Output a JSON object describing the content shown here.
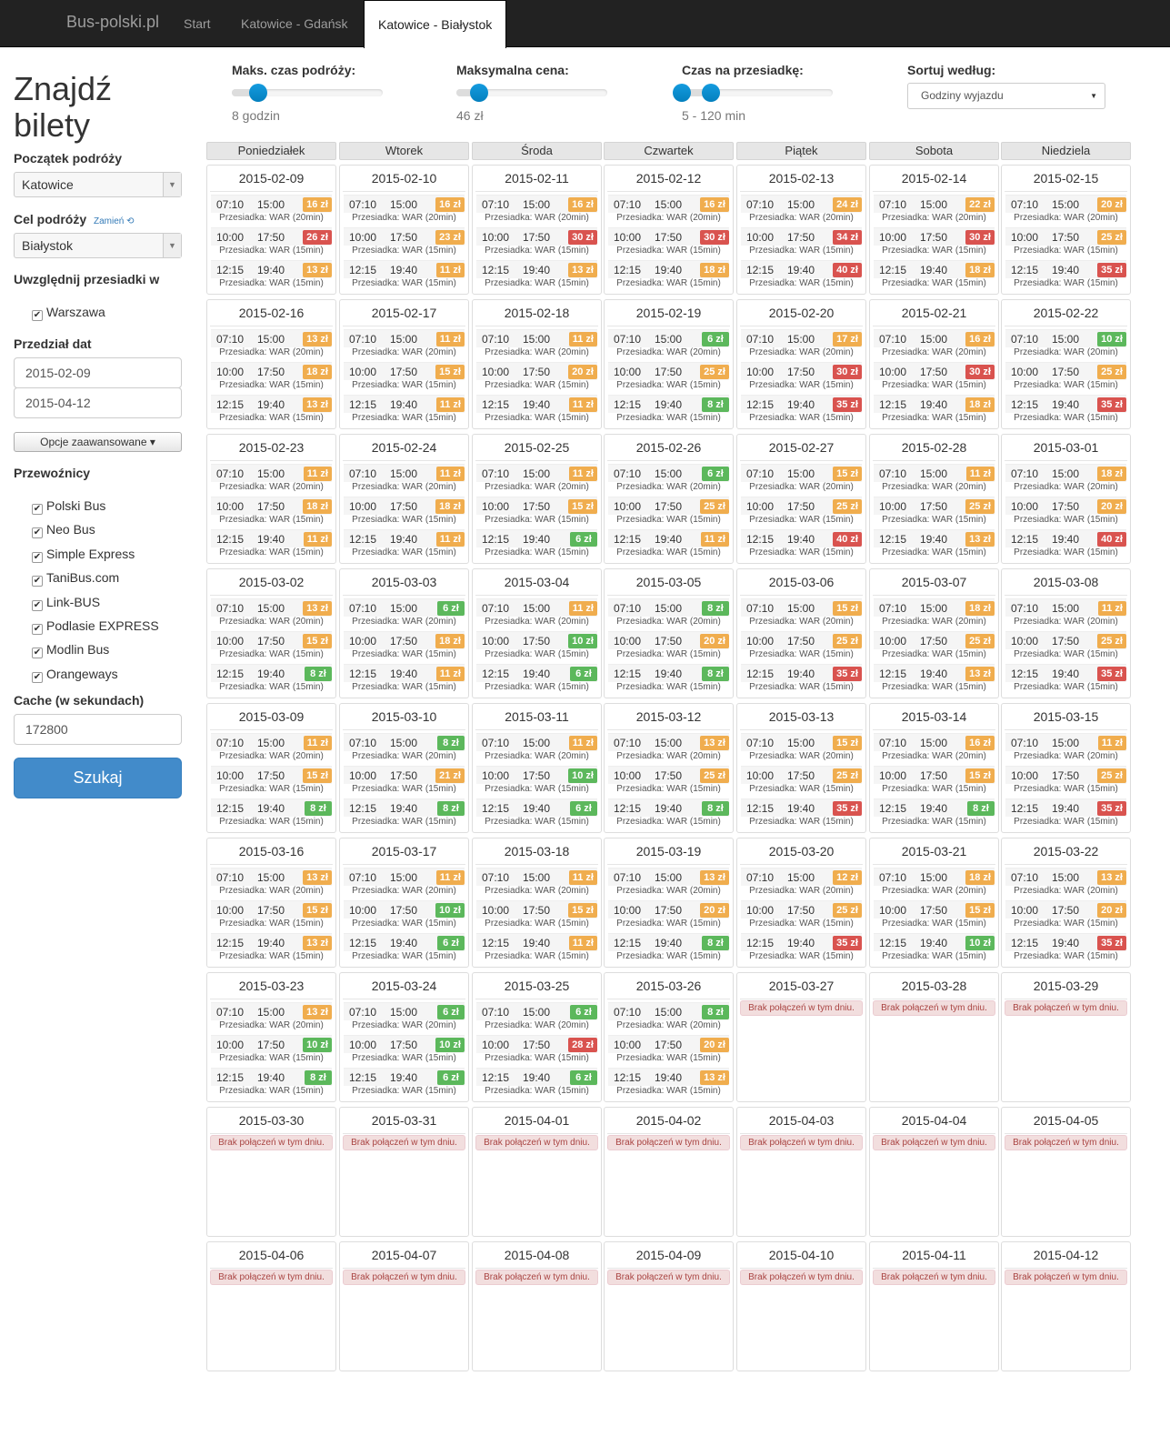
{
  "nav": {
    "brand": "Bus-polski.pl",
    "items": [
      "Start",
      "Katowice - Gdańsk",
      "Katowice - Białystok"
    ]
  },
  "sidebar": {
    "title_line1": "Znajdź",
    "title_line2": "bilety",
    "origin_label": "Początek podróży",
    "origin_value": "Katowice",
    "destination_label": "Cel podróży",
    "swap_label": "Zamień",
    "destination_value": "Białystok",
    "transfers_label": "Uwzględnij przesiadki w",
    "transfers": [
      "Warszawa"
    ],
    "date_range_label": "Przedział dat",
    "date_from": "2015-02-09",
    "date_to": "2015-04-12",
    "advanced_label": "Opcje zaawansowane",
    "carriers_label": "Przewoźnicy",
    "carriers": [
      "Polski Bus",
      "Neo Bus",
      "Simple Express",
      "TaniBus.com",
      "Link-BUS",
      "Podlasie EXPRESS",
      "Modlin Bus",
      "Orangeways"
    ],
    "cache_label": "Cache (w sekundach)",
    "cache_value": "172800",
    "search_label": "Szukaj"
  },
  "filters": {
    "max_time_label": "Maks. czas podróży:",
    "max_time_value": "8 godzin",
    "max_price_label": "Maksymalna cena:",
    "max_price_value": "46 zł",
    "transfer_time_label": "Czas na przesiadkę:",
    "transfer_time_value": "5 - 120 min",
    "sort_label": "Sortuj według:",
    "sort_value": "Godziny wyjazdu"
  },
  "calendar": {
    "weekdays": [
      "Poniedziałek",
      "Wtorek",
      "Środa",
      "Czwartek",
      "Piątek",
      "Sobota",
      "Niedziela"
    ],
    "no_connections": "Brak połączeń w tym dniu.",
    "times": [
      [
        "07:10",
        "15:00"
      ],
      [
        "10:00",
        "17:50"
      ],
      [
        "12:15",
        "19:40"
      ]
    ],
    "via": [
      "Przesiadka: WAR (20min)",
      "Przesiadka: WAR (15min)",
      "Przesiadka: WAR (15min)"
    ],
    "colors": {
      "green": "#5cb85c",
      "orange": "#f0ad4e",
      "red": "#d9534f"
    },
    "days": [
      {
        "date": "2015-02-09",
        "prices": [
          "16 zł",
          "26 zł",
          "13 zł"
        ]
      },
      {
        "date": "2015-02-10",
        "prices": [
          "16 zł",
          "23 zł",
          "11 zł"
        ]
      },
      {
        "date": "2015-02-11",
        "prices": [
          "16 zł",
          "30 zł",
          "13 zł"
        ]
      },
      {
        "date": "2015-02-12",
        "prices": [
          "16 zł",
          "30 zł",
          "18 zł"
        ]
      },
      {
        "date": "2015-02-13",
        "prices": [
          "24 zł",
          "34 zł",
          "40 zł"
        ]
      },
      {
        "date": "2015-02-14",
        "prices": [
          "22 zł",
          "30 zł",
          "18 zł"
        ]
      },
      {
        "date": "2015-02-15",
        "prices": [
          "20 zł",
          "25 zł",
          "35 zł"
        ]
      },
      {
        "date": "2015-02-16",
        "prices": [
          "13 zł",
          "18 zł",
          "13 zł"
        ]
      },
      {
        "date": "2015-02-17",
        "prices": [
          "11 zł",
          "15 zł",
          "11 zł"
        ]
      },
      {
        "date": "2015-02-18",
        "prices": [
          "11 zł",
          "20 zł",
          "11 zł"
        ]
      },
      {
        "date": "2015-02-19",
        "prices": [
          "6 zł",
          "25 zł",
          "8 zł"
        ]
      },
      {
        "date": "2015-02-20",
        "prices": [
          "17 zł",
          "30 zł",
          "35 zł"
        ]
      },
      {
        "date": "2015-02-21",
        "prices": [
          "16 zł",
          "30 zł",
          "18 zł"
        ]
      },
      {
        "date": "2015-02-22",
        "prices": [
          "10 zł",
          "25 zł",
          "35 zł"
        ]
      },
      {
        "date": "2015-02-23",
        "prices": [
          "11 zł",
          "18 zł",
          "11 zł"
        ]
      },
      {
        "date": "2015-02-24",
        "prices": [
          "11 zł",
          "18 zł",
          "11 zł"
        ]
      },
      {
        "date": "2015-02-25",
        "prices": [
          "11 zł",
          "15 zł",
          "6 zł"
        ]
      },
      {
        "date": "2015-02-26",
        "prices": [
          "6 zł",
          "25 zł",
          "11 zł"
        ]
      },
      {
        "date": "2015-02-27",
        "prices": [
          "15 zł",
          "25 zł",
          "40 zł"
        ]
      },
      {
        "date": "2015-02-28",
        "prices": [
          "11 zł",
          "25 zł",
          "13 zł"
        ]
      },
      {
        "date": "2015-03-01",
        "prices": [
          "18 zł",
          "20 zł",
          "40 zł"
        ]
      },
      {
        "date": "2015-03-02",
        "prices": [
          "13 zł",
          "15 zł",
          "8 zł"
        ]
      },
      {
        "date": "2015-03-03",
        "prices": [
          "6 zł",
          "18 zł",
          "11 zł"
        ]
      },
      {
        "date": "2015-03-04",
        "prices": [
          "11 zł",
          "10 zł",
          "6 zł"
        ]
      },
      {
        "date": "2015-03-05",
        "prices": [
          "8 zł",
          "20 zł",
          "8 zł"
        ]
      },
      {
        "date": "2015-03-06",
        "prices": [
          "15 zł",
          "25 zł",
          "35 zł"
        ]
      },
      {
        "date": "2015-03-07",
        "prices": [
          "18 zł",
          "25 zł",
          "13 zł"
        ]
      },
      {
        "date": "2015-03-08",
        "prices": [
          "11 zł",
          "25 zł",
          "35 zł"
        ]
      },
      {
        "date": "2015-03-09",
        "prices": [
          "11 zł",
          "15 zł",
          "8 zł"
        ]
      },
      {
        "date": "2015-03-10",
        "prices": [
          "8 zł",
          "21 zł",
          "8 zł"
        ]
      },
      {
        "date": "2015-03-11",
        "prices": [
          "11 zł",
          "10 zł",
          "6 zł"
        ]
      },
      {
        "date": "2015-03-12",
        "prices": [
          "13 zł",
          "25 zł",
          "8 zł"
        ]
      },
      {
        "date": "2015-03-13",
        "prices": [
          "15 zł",
          "25 zł",
          "35 zł"
        ]
      },
      {
        "date": "2015-03-14",
        "prices": [
          "16 zł",
          "15 zł",
          "8 zł"
        ]
      },
      {
        "date": "2015-03-15",
        "prices": [
          "11 zł",
          "25 zł",
          "35 zł"
        ]
      },
      {
        "date": "2015-03-16",
        "prices": [
          "13 zł",
          "15 zł",
          "13 zł"
        ]
      },
      {
        "date": "2015-03-17",
        "prices": [
          "11 zł",
          "10 zł",
          "6 zł"
        ]
      },
      {
        "date": "2015-03-18",
        "prices": [
          "11 zł",
          "15 zł",
          "11 zł"
        ]
      },
      {
        "date": "2015-03-19",
        "prices": [
          "13 zł",
          "20 zł",
          "8 zł"
        ]
      },
      {
        "date": "2015-03-20",
        "prices": [
          "12 zł",
          "25 zł",
          "35 zł"
        ]
      },
      {
        "date": "2015-03-21",
        "prices": [
          "18 zł",
          "15 zł",
          "10 zł"
        ]
      },
      {
        "date": "2015-03-22",
        "prices": [
          "13 zł",
          "20 zł",
          "35 zł"
        ]
      },
      {
        "date": "2015-03-23",
        "prices": [
          "13 zł",
          "10 zł",
          "8 zł"
        ]
      },
      {
        "date": "2015-03-24",
        "prices": [
          "6 zł",
          "10 zł",
          "6 zł"
        ]
      },
      {
        "date": "2015-03-25",
        "prices": [
          "6 zł",
          "28 zł",
          "6 zł"
        ]
      },
      {
        "date": "2015-03-26",
        "prices": [
          "8 zł",
          "20 zł",
          "13 zł"
        ]
      },
      {
        "date": "2015-03-27",
        "prices": []
      },
      {
        "date": "2015-03-28",
        "prices": []
      },
      {
        "date": "2015-03-29",
        "prices": []
      },
      {
        "date": "2015-03-30",
        "prices": []
      },
      {
        "date": "2015-03-31",
        "prices": []
      },
      {
        "date": "2015-04-01",
        "prices": []
      },
      {
        "date": "2015-04-02",
        "prices": []
      },
      {
        "date": "2015-04-03",
        "prices": []
      },
      {
        "date": "2015-04-04",
        "prices": []
      },
      {
        "date": "2015-04-05",
        "prices": []
      },
      {
        "date": "2015-04-06",
        "prices": []
      },
      {
        "date": "2015-04-07",
        "prices": []
      },
      {
        "date": "2015-04-08",
        "prices": []
      },
      {
        "date": "2015-04-09",
        "prices": []
      },
      {
        "date": "2015-04-10",
        "prices": []
      },
      {
        "date": "2015-04-11",
        "prices": []
      },
      {
        "date": "2015-04-12",
        "prices": []
      }
    ]
  }
}
